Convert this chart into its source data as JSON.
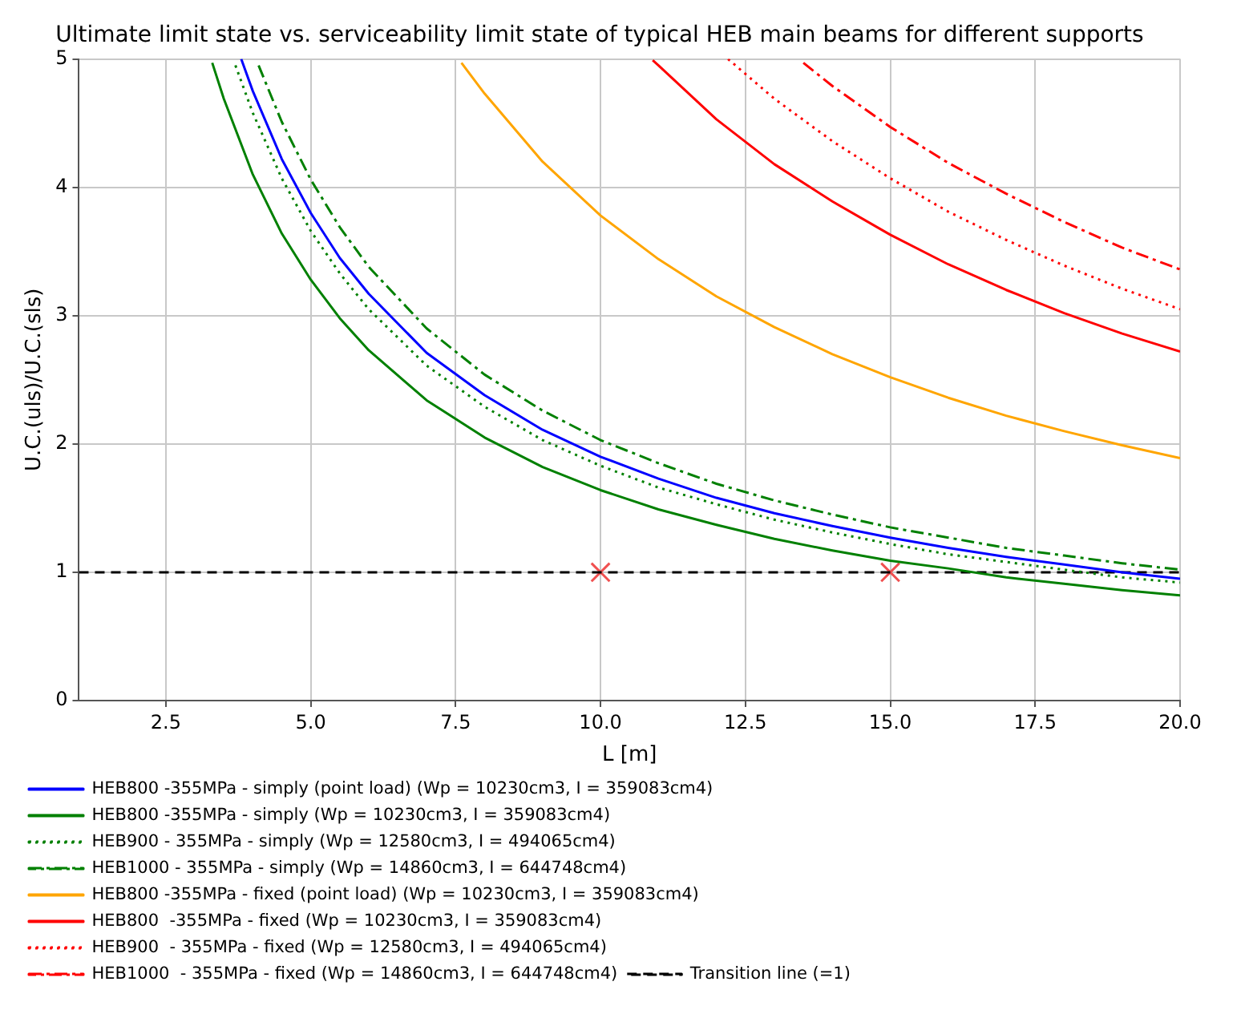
{
  "chart_data": {
    "type": "line",
    "title": "Ultimate limit state vs. serviceability limit state of typical HEB main beams for different supports",
    "xlabel": "L [m]",
    "ylabel": "U.C.(uls)/U.C.(sls)",
    "xlim": [
      1,
      20
    ],
    "ylim": [
      0,
      5
    ],
    "xticks": [
      2.5,
      {
        "value": 5,
        "label": "5.0"
      },
      7.5,
      {
        "value": 10,
        "label": "10.0"
      },
      12.5,
      {
        "value": 15,
        "label": "15.0"
      },
      17.5,
      {
        "value": 20,
        "label": "20.0"
      }
    ],
    "yticks": [
      0,
      1,
      2,
      3,
      4,
      5
    ],
    "grid": true,
    "legend": "bottom",
    "series": [
      {
        "name": "HEB800 -355MPa - simply (point load) (Wp = 10230cm3, I = 359083cm4)",
        "color": "#0000ff",
        "line_style": "solid",
        "x": [
          3.8,
          4,
          4.5,
          5,
          5.5,
          6,
          7,
          8,
          9,
          10,
          11,
          12,
          13,
          14,
          15,
          16,
          17,
          18,
          19,
          20
        ],
        "values": [
          5.0,
          4.75,
          4.22,
          3.8,
          3.45,
          3.17,
          2.71,
          2.38,
          2.11,
          1.9,
          1.73,
          1.58,
          1.46,
          1.36,
          1.27,
          1.19,
          1.12,
          1.06,
          1.0,
          0.95
        ]
      },
      {
        "name": "HEB800 -355MPa - simply (Wp = 10230cm3, I = 359083cm4)",
        "color": "#008000",
        "line_style": "solid",
        "x": [
          3.3,
          3.5,
          4,
          4.5,
          5,
          5.5,
          6,
          7,
          8,
          9,
          10,
          11,
          12,
          13,
          14,
          15,
          16,
          17,
          18,
          19,
          20
        ],
        "values": [
          4.97,
          4.69,
          4.1,
          3.64,
          3.28,
          2.98,
          2.73,
          2.34,
          2.05,
          1.82,
          1.64,
          1.49,
          1.37,
          1.26,
          1.17,
          1.09,
          1.03,
          0.96,
          0.91,
          0.86,
          0.82
        ]
      },
      {
        "name": "HEB900 - 355MPa - simply (Wp = 12580cm3, I = 494065cm4)",
        "color": "#008000",
        "line_style": "dotted",
        "x": [
          3.7,
          4,
          4.5,
          5,
          5.5,
          6,
          7,
          8,
          9,
          10,
          11,
          12,
          13,
          14,
          15,
          16,
          17,
          18,
          19,
          20
        ],
        "values": [
          4.95,
          4.58,
          4.07,
          3.66,
          3.33,
          3.05,
          2.61,
          2.29,
          2.03,
          1.83,
          1.66,
          1.53,
          1.41,
          1.31,
          1.22,
          1.14,
          1.08,
          1.02,
          0.96,
          0.92
        ]
      },
      {
        "name": "HEB1000 - 355MPa - simply (Wp = 14860cm3, I = 644748cm4)",
        "color": "#008000",
        "line_style": "dashdot",
        "x": [
          4.1,
          4.5,
          5,
          5.5,
          6,
          7,
          8,
          9,
          10,
          11,
          12,
          13,
          14,
          15,
          16,
          17,
          18,
          19,
          20
        ],
        "values": [
          4.95,
          4.51,
          4.06,
          3.69,
          3.38,
          2.9,
          2.54,
          2.26,
          2.03,
          1.85,
          1.69,
          1.56,
          1.45,
          1.35,
          1.27,
          1.19,
          1.13,
          1.07,
          1.02
        ]
      },
      {
        "name": "HEB800 -355MPa - fixed (point load) (Wp = 10230cm3, I = 359083cm4)",
        "color": "#ffa500",
        "line_style": "solid",
        "x": [
          7.6,
          8,
          9,
          10,
          11,
          12,
          13,
          14,
          15,
          16,
          17,
          18,
          19,
          20
        ],
        "values": [
          4.97,
          4.73,
          4.2,
          3.78,
          3.44,
          3.15,
          2.91,
          2.7,
          2.52,
          2.36,
          2.22,
          2.1,
          1.99,
          1.89
        ]
      },
      {
        "name": "HEB800  -355MPa - fixed (Wp = 10230cm3, I = 359083cm4)",
        "color": "#ff0000",
        "line_style": "solid",
        "x": [
          10.9,
          11,
          12,
          13,
          14,
          15,
          16,
          17,
          18,
          19,
          20
        ],
        "values": [
          4.99,
          4.95,
          4.53,
          4.18,
          3.89,
          3.63,
          3.4,
          3.2,
          3.02,
          2.86,
          2.72
        ]
      },
      {
        "name": "HEB900  - 355MPa - fixed (Wp = 12580cm3, I = 494065cm4)",
        "color": "#ff0000",
        "line_style": "dotted",
        "x": [
          12.2,
          13,
          14,
          15,
          16,
          17,
          18,
          19,
          20
        ],
        "values": [
          5.0,
          4.69,
          4.36,
          4.07,
          3.81,
          3.59,
          3.39,
          3.21,
          3.05
        ]
      },
      {
        "name": "HEB1000  - 355MPa - fixed (Wp = 14860cm3, I = 644748cm4)",
        "color": "#ff0000",
        "line_style": "dashdot",
        "x": [
          13.5,
          14,
          15,
          16,
          17,
          18,
          19,
          20
        ],
        "values": [
          4.97,
          4.79,
          4.47,
          4.19,
          3.95,
          3.73,
          3.53,
          3.36
        ]
      },
      {
        "name": "Transition line (=1)",
        "color": "#000000",
        "line_style": "dashed",
        "x": [
          1,
          20
        ],
        "values": [
          1,
          1
        ]
      },
      {
        "type": "scatter",
        "color": "#f05050",
        "marker": "cross",
        "x": [
          10,
          15
        ],
        "values": [
          1,
          1
        ]
      }
    ]
  }
}
